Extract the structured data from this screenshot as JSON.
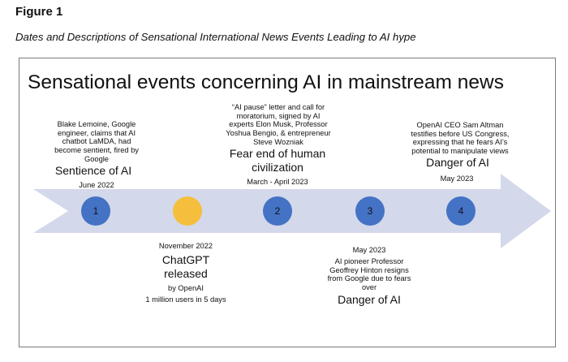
{
  "figure": {
    "label": "Figure 1",
    "caption": "Dates and Descriptions of Sensational International News Events Leading to AI hype"
  },
  "slide": {
    "title": "Sensational events concerning AI in mainstream news"
  },
  "colors": {
    "arrow": "#d3d8eb",
    "node_blue": "#4472c4",
    "node_gold": "#f5bf3d",
    "frame": "#7a7a7a"
  },
  "events": [
    {
      "number": "1",
      "description_lines": [
        "Blake Lemoine, Google",
        "engineer, claims that AI",
        "chatbot LaMDA, had",
        "become sentient, fired by",
        "Google"
      ],
      "heading_lines": [
        "Sentience of AI"
      ],
      "date": "June 2022"
    },
    {
      "number": "",
      "date": "November 2022",
      "heading_lines": [
        "ChatGPT",
        "released"
      ],
      "detail_lines": [
        "by OpenAI",
        "1 million users in 5 days"
      ]
    },
    {
      "number": "2",
      "description_lines": [
        "“AI pause” letter and call for",
        "moratorium, signed by AI",
        "experts Elon Musk, Professor",
        "Yoshua Bengio, & entrepreneur",
        "Steve Wozniak"
      ],
      "heading_lines": [
        "Fear end of human",
        "civilization"
      ],
      "date": "March - April  2023"
    },
    {
      "number": "3",
      "date": "May 2023",
      "description_lines": [
        "AI pioneer Professor",
        "Geoffrey Hinton resigns",
        "from Google due to fears",
        "over"
      ],
      "heading_lines": [
        "Danger of AI"
      ]
    },
    {
      "number": "4",
      "description_lines": [
        "OpenAI CEO Sam Altman",
        "testifies before US Congress,",
        "expressing that he fears AI’s",
        "potential to manipulate views"
      ],
      "heading_lines": [
        "Danger of AI"
      ],
      "date": "May 2023"
    }
  ]
}
